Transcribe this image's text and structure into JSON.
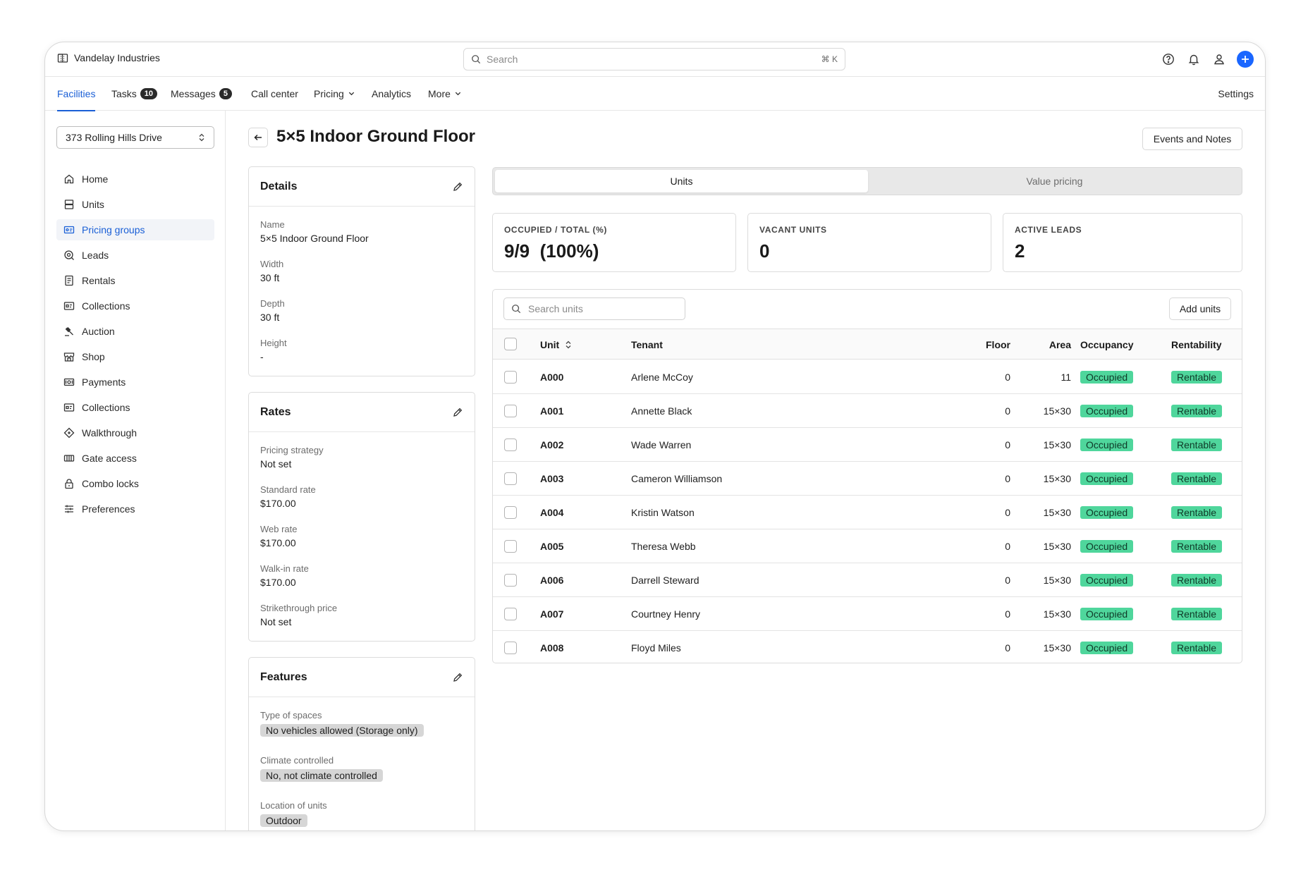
{
  "app": {
    "company": "Vandelay Industries"
  },
  "search": {
    "placeholder": "Search",
    "shortcut": "⌘ K"
  },
  "nav": {
    "tabs": [
      {
        "label": "Facilities"
      },
      {
        "label": "Tasks",
        "badge": "10"
      },
      {
        "label": "Messages",
        "badge": "5"
      },
      {
        "label": "Call center"
      },
      {
        "label": "Pricing"
      },
      {
        "label": "Analytics"
      },
      {
        "label": "More"
      }
    ],
    "settings": "Settings"
  },
  "sidebar": {
    "facility": "373 Rolling Hills Drive",
    "items": [
      {
        "label": "Home"
      },
      {
        "label": "Units"
      },
      {
        "label": "Pricing groups"
      },
      {
        "label": "Leads"
      },
      {
        "label": "Rentals"
      },
      {
        "label": "Collections"
      },
      {
        "label": "Auction"
      },
      {
        "label": "Shop"
      },
      {
        "label": "Payments"
      },
      {
        "label": "Collections"
      },
      {
        "label": "Walkthrough"
      },
      {
        "label": "Gate access"
      },
      {
        "label": "Combo locks"
      },
      {
        "label": "Preferences"
      }
    ]
  },
  "page": {
    "title": "5×5 Indoor Ground Floor",
    "events_button": "Events and Notes"
  },
  "details": {
    "title": "Details",
    "fields": [
      {
        "label": "Name",
        "value": "5×5 Indoor Ground Floor"
      },
      {
        "label": "Width",
        "value": "30 ft"
      },
      {
        "label": "Depth",
        "value": "30 ft"
      },
      {
        "label": "Height",
        "value": "-"
      }
    ]
  },
  "rates": {
    "title": "Rates",
    "fields": [
      {
        "label": "Pricing strategy",
        "value": "Not set"
      },
      {
        "label": "Standard rate",
        "value": "$170.00"
      },
      {
        "label": "Web rate",
        "value": "$170.00"
      },
      {
        "label": "Walk-in rate",
        "value": "$170.00"
      },
      {
        "label": "Strikethrough price",
        "value": "Not set"
      }
    ]
  },
  "features": {
    "title": "Features",
    "fields": [
      {
        "label": "Type of spaces",
        "value": "No vehicles allowed (Storage only)"
      },
      {
        "label": "Climate controlled",
        "value": "No, not climate controlled"
      },
      {
        "label": "Location of units",
        "value": "Outdoor"
      }
    ]
  },
  "view_tabs": {
    "units": "Units",
    "value_pricing": "Value pricing"
  },
  "stats": [
    {
      "label": "OCCUPIED / TOTAL (%)",
      "value": "9/9  (100%)"
    },
    {
      "label": "VACANT UNITS",
      "value": "0"
    },
    {
      "label": "ACTIVE LEADS",
      "value": "2"
    }
  ],
  "units_table": {
    "search_placeholder": "Search units",
    "add_button": "Add units",
    "columns": {
      "unit": "Unit",
      "tenant": "Tenant",
      "floor": "Floor",
      "area": "Area",
      "occupancy": "Occupancy",
      "rentability": "Rentability"
    },
    "rows": [
      {
        "unit": "A000",
        "tenant": "Arlene McCoy",
        "floor": "0",
        "area": "11",
        "occupancy": "Occupied",
        "rentability": "Rentable"
      },
      {
        "unit": "A001",
        "tenant": "Annette Black",
        "floor": "0",
        "area": "15×30",
        "occupancy": "Occupied",
        "rentability": "Rentable"
      },
      {
        "unit": "A002",
        "tenant": "Wade Warren",
        "floor": "0",
        "area": "15×30",
        "occupancy": "Occupied",
        "rentability": "Rentable"
      },
      {
        "unit": "A003",
        "tenant": "Cameron Williamson",
        "floor": "0",
        "area": "15×30",
        "occupancy": "Occupied",
        "rentability": "Rentable"
      },
      {
        "unit": "A004",
        "tenant": "Kristin Watson",
        "floor": "0",
        "area": "15×30",
        "occupancy": "Occupied",
        "rentability": "Rentable"
      },
      {
        "unit": "A005",
        "tenant": "Theresa Webb",
        "floor": "0",
        "area": "15×30",
        "occupancy": "Occupied",
        "rentability": "Rentable"
      },
      {
        "unit": "A006",
        "tenant": "Darrell Steward",
        "floor": "0",
        "area": "15×30",
        "occupancy": "Occupied",
        "rentability": "Rentable"
      },
      {
        "unit": "A007",
        "tenant": "Courtney Henry",
        "floor": "0",
        "area": "15×30",
        "occupancy": "Occupied",
        "rentability": "Rentable"
      },
      {
        "unit": "A008",
        "tenant": "Floyd Miles",
        "floor": "0",
        "area": "15×30",
        "occupancy": "Occupied",
        "rentability": "Rentable"
      }
    ]
  },
  "colors": {
    "accent": "#1a5fd6",
    "plus": "#1a66ff",
    "status_green": "#4fd69c"
  }
}
